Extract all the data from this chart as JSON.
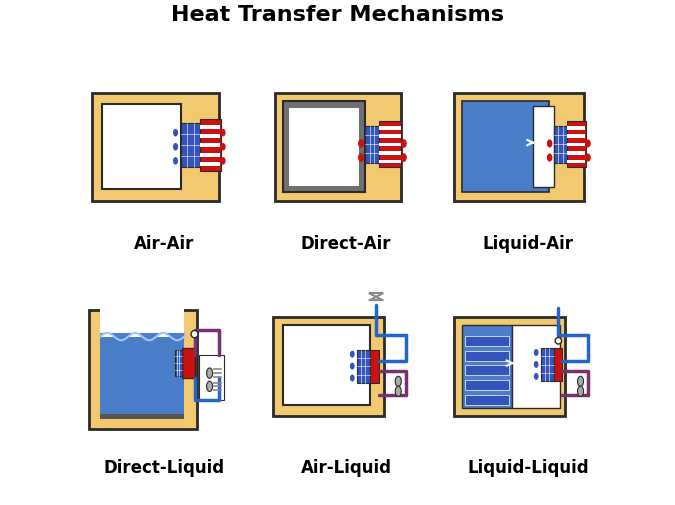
{
  "title": "Heat Transfer Mechanisms",
  "title_fontsize": 16,
  "title_fontweight": "bold",
  "background_color": "#ffffff",
  "labels": [
    "Air-Air",
    "Direct-Air",
    "Liquid-Air",
    "Direct-Liquid",
    "Air-Liquid",
    "Liquid-Liquid"
  ],
  "label_fontsize": 12,
  "label_fontweight": "bold",
  "colors": {
    "sandy": "#F2C96E",
    "dark_outline": "#2a2a2a",
    "gray_outline": "#707070",
    "white": "#ffffff",
    "blue_liquid": "#4A7EC8",
    "blue_liquid_dark": "#3060A8",
    "red_block": "#CC1111",
    "blue_tec": "#3355BB",
    "purple_pipe": "#7B3070",
    "blue_pipe": "#2266CC",
    "gray_light": "#AAAAAA",
    "gray_med": "#888888",
    "gray_dark": "#555555"
  }
}
